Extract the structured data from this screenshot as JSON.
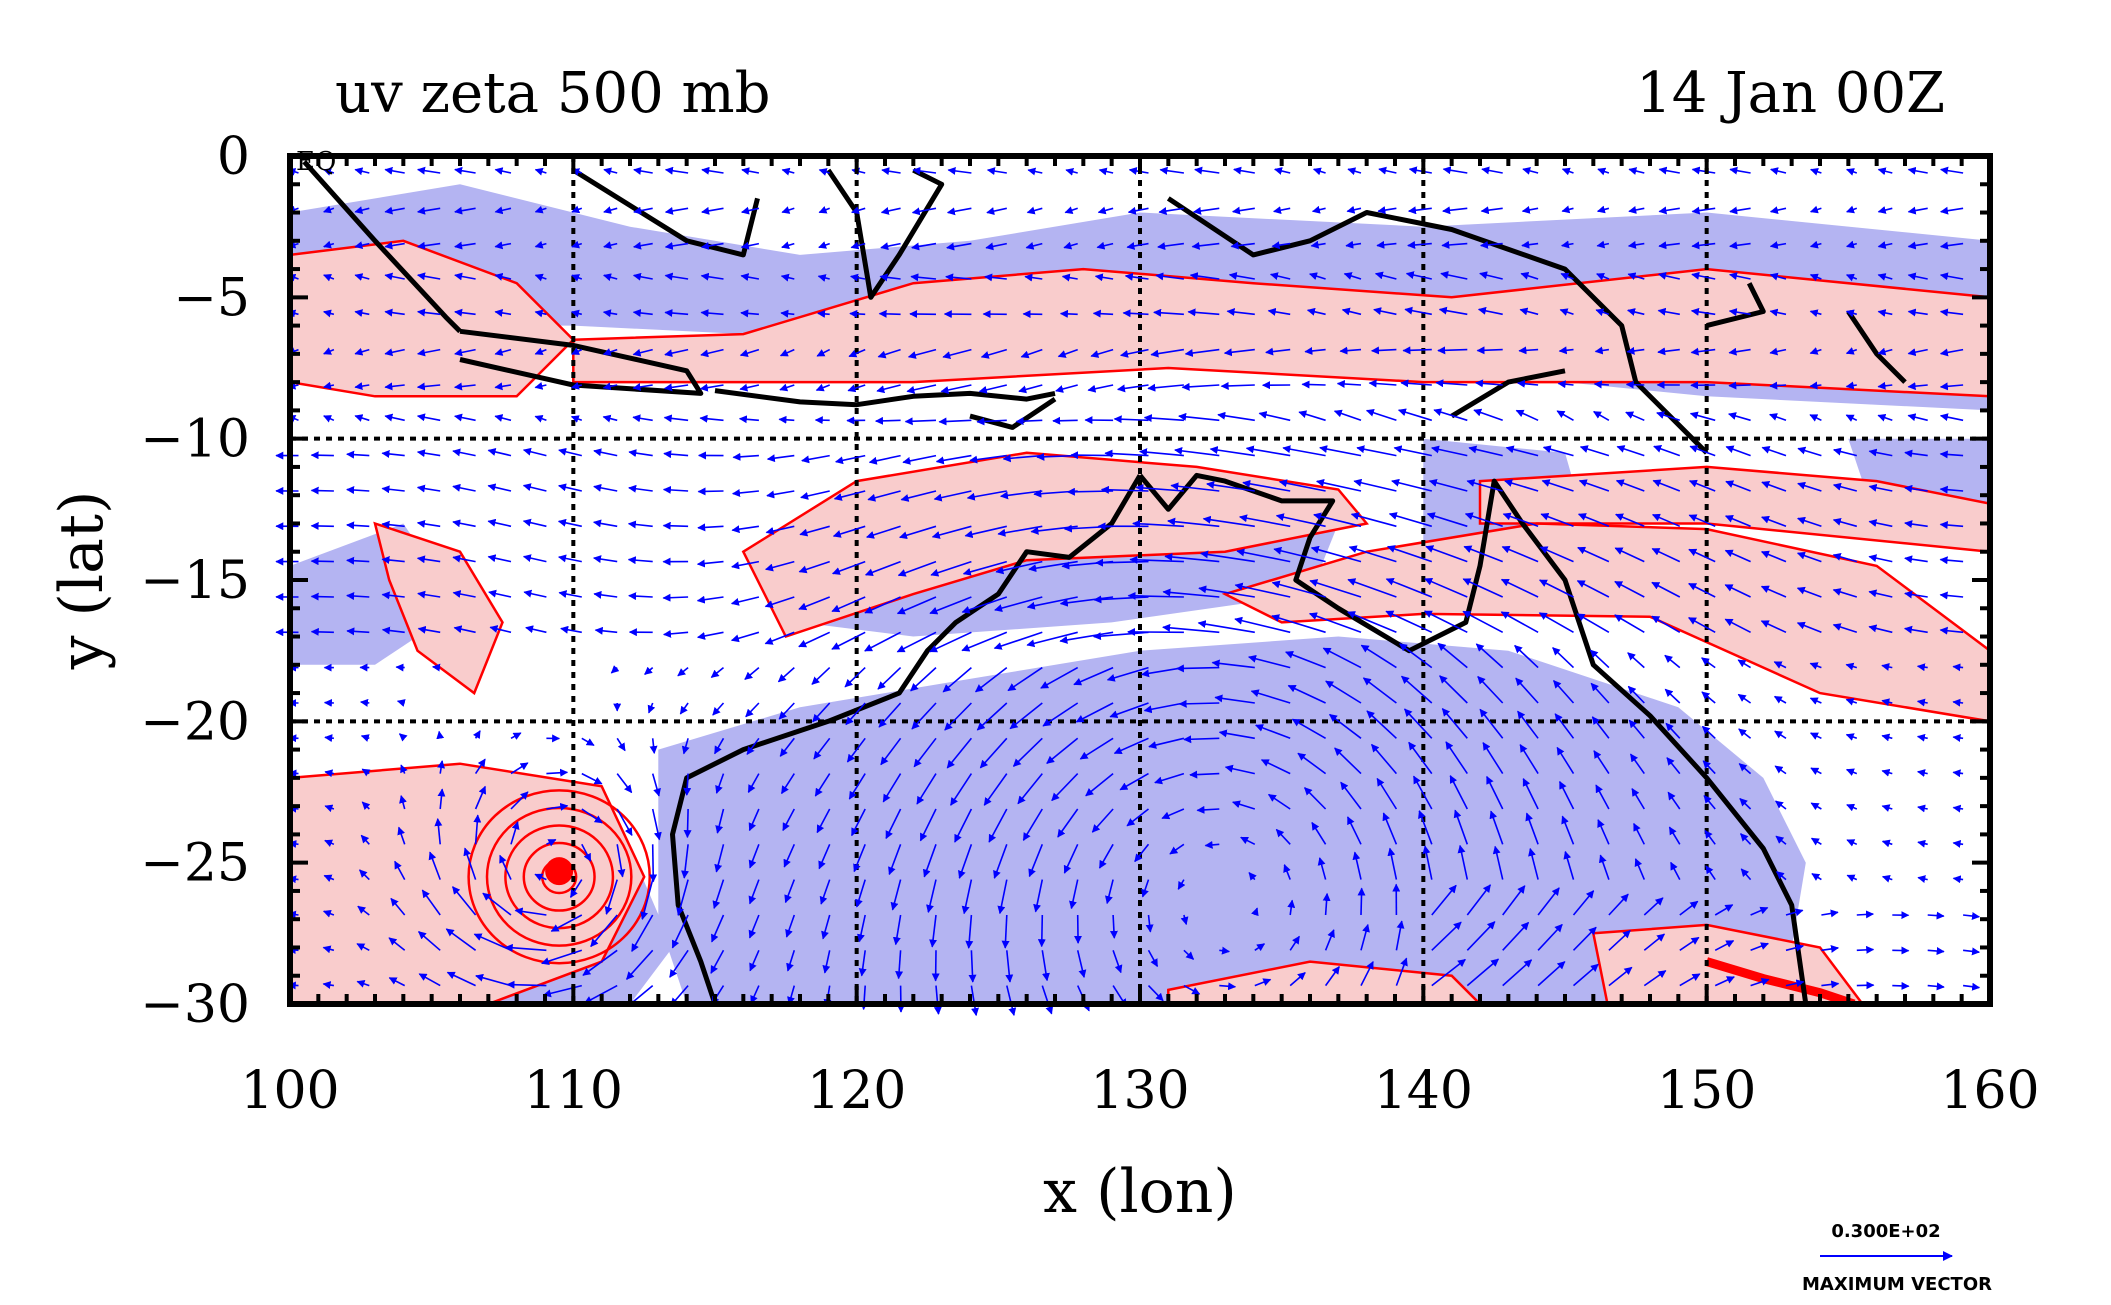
{
  "chart_data": {
    "type": "vector-field-contour",
    "title_left": "uv zeta 500 mb",
    "title_right": "14 Jan 00Z",
    "xlabel": "x (lon)",
    "ylabel": "y (lat)",
    "xlim": [
      100,
      160
    ],
    "ylim": [
      -30,
      0
    ],
    "x_ticks": [
      100,
      110,
      120,
      130,
      140,
      150,
      160
    ],
    "y_ticks": [
      0,
      -5,
      -10,
      -15,
      -20,
      -25,
      -30
    ],
    "x_tick_labels": [
      "100",
      "110",
      "120",
      "130",
      "140",
      "150",
      "160"
    ],
    "y_tick_labels": [
      "0",
      "−5",
      "−10",
      "−15",
      "−20",
      "−25",
      "−30"
    ],
    "gridlines_x": [
      110,
      120,
      130,
      140,
      150
    ],
    "gridlines_y": [
      -10,
      -20
    ],
    "equator_label": "EQ",
    "reference_vector": {
      "value_label": "0.300E+02",
      "caption": "MAXIMUM VECTOR"
    },
    "colors": {
      "positive_fill": "#f9cccc",
      "negative_fill": "#b4b4f2",
      "contour": "#ff0000",
      "vector": "#0000ff",
      "coast": "#000000"
    },
    "features": {
      "cyclone_center": [
        109.5,
        -25.5
      ],
      "anticyclone_center": [
        133,
        -25
      ]
    }
  }
}
